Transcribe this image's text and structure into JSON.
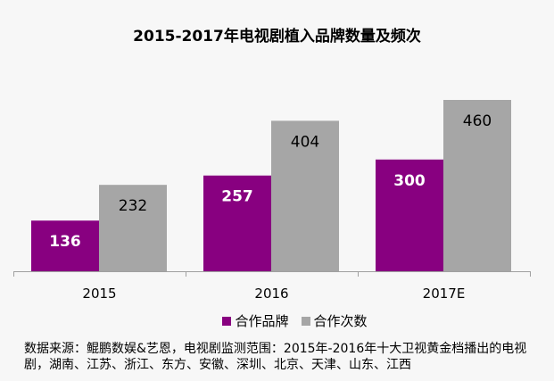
{
  "chart_data": {
    "type": "bar",
    "title": "2015-2017年电视剧植入品牌数量及频次",
    "categories": [
      "2015",
      "2016",
      "2017E"
    ],
    "series": [
      {
        "name": "合作品牌",
        "values": [
          136,
          257,
          300
        ],
        "color": "#880080"
      },
      {
        "name": "合作次数",
        "values": [
          232,
          404,
          460
        ],
        "color": "#a6a6a6"
      }
    ],
    "ylim": [
      0,
      460
    ],
    "grid": false,
    "legend": "bottom",
    "data_labels": true
  },
  "source": "数据来源：鲲鹏数娱&艺恩，电视剧监测范围：2015年-2016年十大卫视黄金档播出的电视剧，湖南、江苏、浙江、东方、安徽、深圳、北京、天津、山东、江西"
}
